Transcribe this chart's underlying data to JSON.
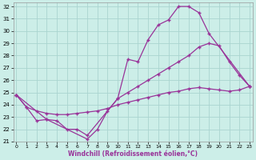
{
  "xlabel": "Windchill (Refroidissement éolien,°C)",
  "bg_color": "#cceee8",
  "grid_color": "#aad4d0",
  "line_color": "#993399",
  "ylim": [
    21,
    32
  ],
  "xlim": [
    0,
    23
  ],
  "line1_x": [
    0,
    1,
    2,
    3,
    7,
    8,
    9,
    10,
    11,
    12,
    13,
    14,
    15,
    16,
    17,
    18,
    19,
    23
  ],
  "line1_y": [
    24.8,
    23.8,
    22.7,
    22.8,
    21.2,
    22.0,
    23.5,
    24.5,
    27.7,
    27.5,
    29.3,
    30.5,
    30.9,
    32.0,
    32.0,
    31.5,
    29.8,
    25.5
  ],
  "line2_x": [
    0,
    3,
    4,
    5,
    6,
    7,
    10,
    11,
    12,
    13,
    14,
    15,
    16,
    17,
    18,
    19,
    20,
    21,
    22,
    23
  ],
  "line2_y": [
    24.8,
    22.8,
    22.7,
    22.0,
    22.0,
    21.5,
    24.5,
    25.0,
    25.5,
    26.0,
    26.5,
    27.0,
    27.5,
    28.0,
    28.7,
    29.0,
    28.8,
    27.5,
    26.4,
    25.5
  ],
  "line3_x": [
    0,
    1,
    2,
    3,
    4,
    5,
    6,
    7,
    8,
    9,
    10,
    11,
    12,
    13,
    14,
    15,
    16,
    17,
    18,
    19,
    20,
    21,
    22,
    23
  ],
  "line3_y": [
    24.8,
    23.8,
    23.5,
    23.3,
    23.2,
    23.2,
    23.3,
    23.4,
    23.5,
    23.7,
    24.0,
    24.2,
    24.4,
    24.6,
    24.8,
    25.0,
    25.1,
    25.3,
    25.4,
    25.3,
    25.2,
    25.1,
    25.2,
    25.5
  ],
  "marker_size": 3.5,
  "line_width": 0.9
}
